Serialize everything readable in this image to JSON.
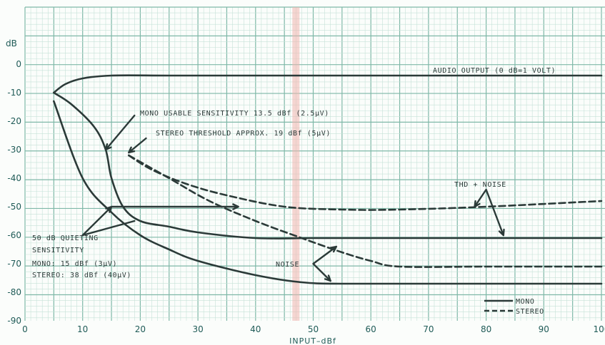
{
  "chart_data": {
    "type": "line",
    "xlabel": "INPUT–dBf",
    "ylabel": "dB",
    "xlim": [
      0,
      100
    ],
    "ylim": [
      -90,
      0
    ],
    "grid": true,
    "x_ticks": [
      "0",
      "10",
      "20",
      "30",
      "40",
      "50",
      "60",
      "70",
      "80",
      "90",
      "100"
    ],
    "y_ticks": [
      "0",
      "-10",
      "-20",
      "-30",
      "-40",
      "-50",
      "-60",
      "-70",
      "-80",
      "-90"
    ],
    "highlight_x": 47,
    "series": [
      {
        "name": "MONO",
        "group": "audio",
        "style": "solid",
        "x": [
          5,
          7,
          10,
          15,
          25,
          40,
          60,
          80,
          100
        ],
        "y": [
          -10,
          -7,
          -5,
          -4,
          -4,
          -4,
          -4,
          -4,
          -4
        ]
      },
      {
        "name": "MONO",
        "group": "thd",
        "style": "solid",
        "x": [
          5,
          8,
          12,
          14,
          15,
          17,
          20,
          25,
          30,
          40,
          50,
          60,
          80,
          100
        ],
        "y": [
          -10,
          -14,
          -22,
          -30,
          -40,
          -50,
          -55,
          -57,
          -59,
          -61,
          -61,
          -61,
          -61,
          -61
        ]
      },
      {
        "name": "MONO",
        "group": "noise",
        "style": "solid",
        "x": [
          5,
          10,
          15,
          20,
          25,
          30,
          40,
          48,
          55,
          70,
          100
        ],
        "y": [
          -13,
          -40,
          -52,
          -60,
          -65,
          -69,
          -74,
          -76.5,
          -77,
          -77,
          -77
        ]
      },
      {
        "name": "STEREO",
        "group": "thd",
        "style": "dashed",
        "x": [
          18,
          22,
          28,
          35,
          45,
          55,
          65,
          80,
          100
        ],
        "y": [
          -32,
          -37,
          -42,
          -46,
          -50,
          -51,
          -51,
          -50,
          -48
        ]
      },
      {
        "name": "STEREO",
        "group": "noise",
        "style": "dashed",
        "x": [
          18,
          25,
          32,
          40,
          48,
          55,
          60,
          65,
          80,
          100
        ],
        "y": [
          -32,
          -40,
          -48,
          -55,
          -61,
          -66,
          -69,
          -71,
          -71,
          -71
        ]
      }
    ],
    "annotations": {
      "audio_output": "AUDIO OUTPUT (0 dB=1 VOLT)",
      "mono_usable": "MONO USABLE SENSITIVITY 13.5 dBf (2.5μV)",
      "stereo_threshold": "STEREO THRESHOLD APPROX. 19 dBf (5μV)",
      "thd_noise": "THD + NOISE",
      "quieting_1": "50 dB QUIETING",
      "quieting_2": "SENSITIVITY",
      "quieting_3": "MONO: 15 dBf (3μV)",
      "quieting_4": "STEREO: 38 dBf (40μV)",
      "noise": "NOISE"
    },
    "legend": {
      "mono": "MONO",
      "stereo": "STEREO",
      "placement": "bottom-right"
    }
  }
}
